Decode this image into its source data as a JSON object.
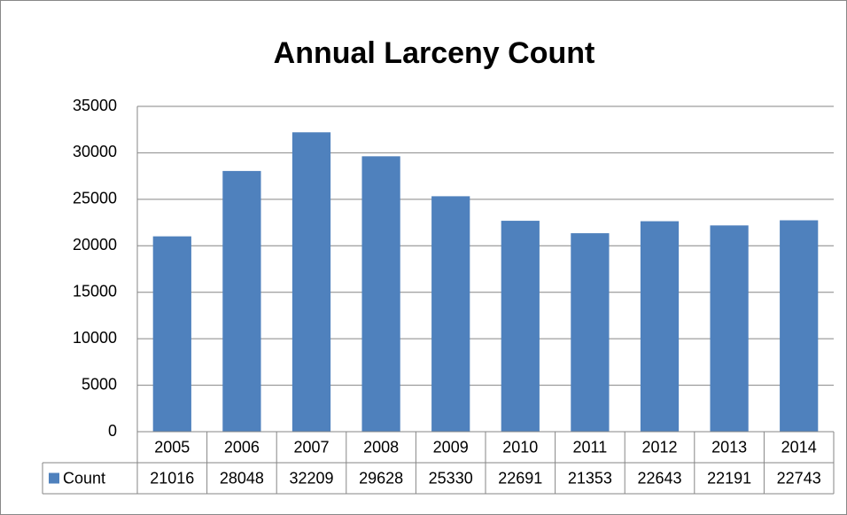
{
  "chart_data": {
    "type": "bar",
    "title": "Annual Larceny Count",
    "categories": [
      "2005",
      "2006",
      "2007",
      "2008",
      "2009",
      "2010",
      "2011",
      "2012",
      "2013",
      "2014"
    ],
    "series": [
      {
        "name": "Count",
        "color": "#4f81bd",
        "values": [
          21016,
          28048,
          32209,
          29628,
          25330,
          22691,
          21353,
          22643,
          22191,
          22743
        ]
      }
    ],
    "ylim": [
      0,
      35000
    ],
    "yticks": [
      0,
      5000,
      10000,
      15000,
      20000,
      25000,
      30000,
      35000
    ],
    "grid": true,
    "data_table": true
  }
}
